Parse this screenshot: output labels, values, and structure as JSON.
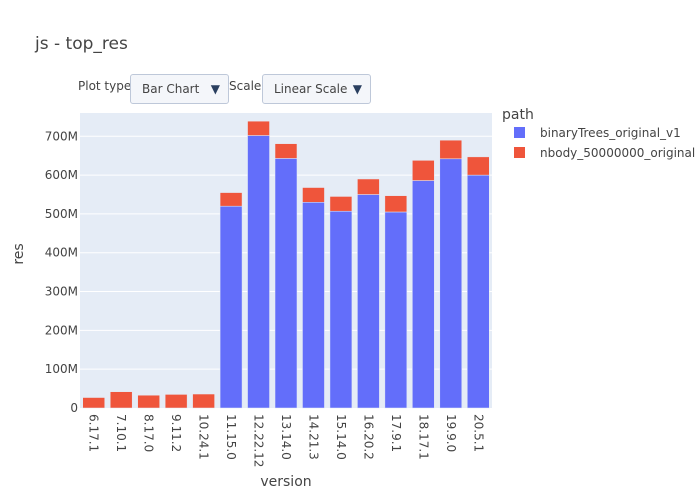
{
  "title": "js - top_res",
  "controls": {
    "plot_type_label": "Plot type:",
    "plot_type_value": "Bar Chart",
    "scale_label": "Scale:",
    "scale_value": "Linear Scale",
    "arrow_glyph": "▼"
  },
  "legend": {
    "title": "path"
  },
  "colors": {
    "plot_bg": "#e5ecf6",
    "grid": "#ffffff",
    "series_1": "#636efa",
    "series_2": "#ef553b"
  },
  "chart_data": {
    "type": "bar",
    "barmode": "stack",
    "title": "js - top_res",
    "xlabel": "version",
    "ylabel": "res",
    "categories": [
      "6.17.1",
      "7.10.1",
      "8.17.0",
      "9.11.2",
      "10.24.1",
      "11.15.0",
      "12.22.12",
      "13.14.0",
      "14.21.3",
      "15.14.0",
      "16.20.2",
      "17.9.1",
      "18.17.1",
      "19.9.0",
      "20.5.1"
    ],
    "ylim": [
      0,
      760000000
    ],
    "yticks": [
      0,
      100000000,
      200000000,
      300000000,
      400000000,
      500000000,
      600000000,
      700000000
    ],
    "ytick_labels": [
      "0",
      "100M",
      "200M",
      "300M",
      "400M",
      "500M",
      "600M",
      "700M"
    ],
    "grid": true,
    "legend_position": "right",
    "series": [
      {
        "name": "binaryTrees_original_v1",
        "values": [
          0,
          0,
          0,
          0,
          0,
          520000000,
          702000000,
          643000000,
          530000000,
          507000000,
          550000000,
          505000000,
          586000000,
          642000000,
          600000000
        ]
      },
      {
        "name": "nbody_50000000_original",
        "values": [
          27000000,
          42000000,
          33000000,
          35000000,
          36000000,
          35000000,
          37000000,
          38000000,
          38000000,
          38000000,
          40000000,
          42000000,
          52000000,
          48000000,
          47000000
        ]
      }
    ]
  }
}
